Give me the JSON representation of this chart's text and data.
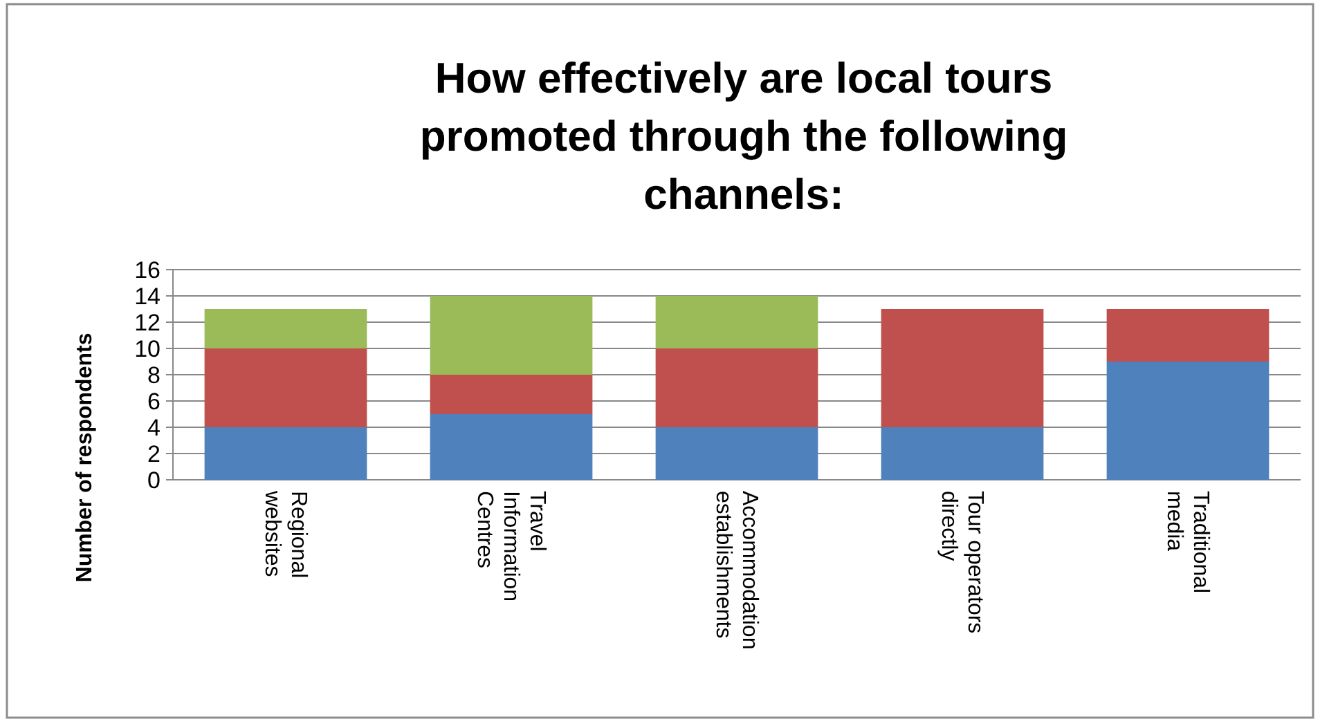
{
  "chart_data": {
    "type": "bar",
    "title": "How effectively are local tours promoted through the following channels:",
    "ylabel": "Number of respondents",
    "categories": [
      "Regional websites",
      "Travel Information Centres",
      "Accommodation establishments",
      "Tour operators directly",
      "Traditional media"
    ],
    "stacked": true,
    "series": [
      {
        "color": "#4f81bd",
        "values": [
          4,
          5,
          4,
          4,
          9
        ]
      },
      {
        "color": "#c0504d",
        "values": [
          6,
          3,
          6,
          9,
          4
        ]
      },
      {
        "color": "#9bbb59",
        "values": [
          3,
          6,
          4,
          0,
          0
        ]
      }
    ],
    "ylim": [
      0,
      16
    ],
    "yticks": [
      0,
      2,
      4,
      6,
      8,
      10,
      12,
      14,
      16
    ],
    "grid": "y"
  }
}
